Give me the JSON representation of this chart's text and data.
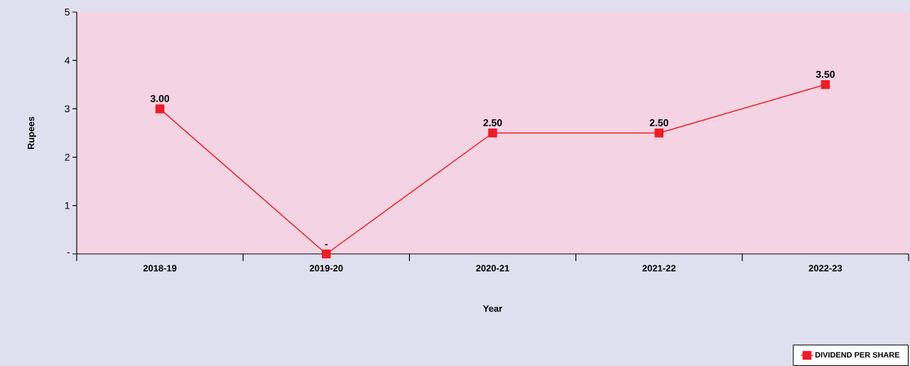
{
  "chart_data": {
    "type": "line",
    "xlabel": "Year",
    "ylabel": "Rupees",
    "categories": [
      "2018-19",
      "2019-20",
      "2020-21",
      "2021-22",
      "2022-23"
    ],
    "series": [
      {
        "name": "DIVIDEND PER SHARE",
        "color": "#ee1c25",
        "values": [
          3,
          0,
          2.5,
          2.5,
          3.5
        ],
        "value_labels": [
          "3.00",
          "-",
          "2.50",
          "2.50",
          "3.50"
        ]
      }
    ],
    "ylim": [
      0,
      5
    ],
    "yticks": [
      {
        "value": 0,
        "label": "-"
      },
      1,
      2,
      3,
      4,
      5
    ],
    "marker": "square",
    "line_style": "solid",
    "legend": "bottom right",
    "grid": false
  }
}
